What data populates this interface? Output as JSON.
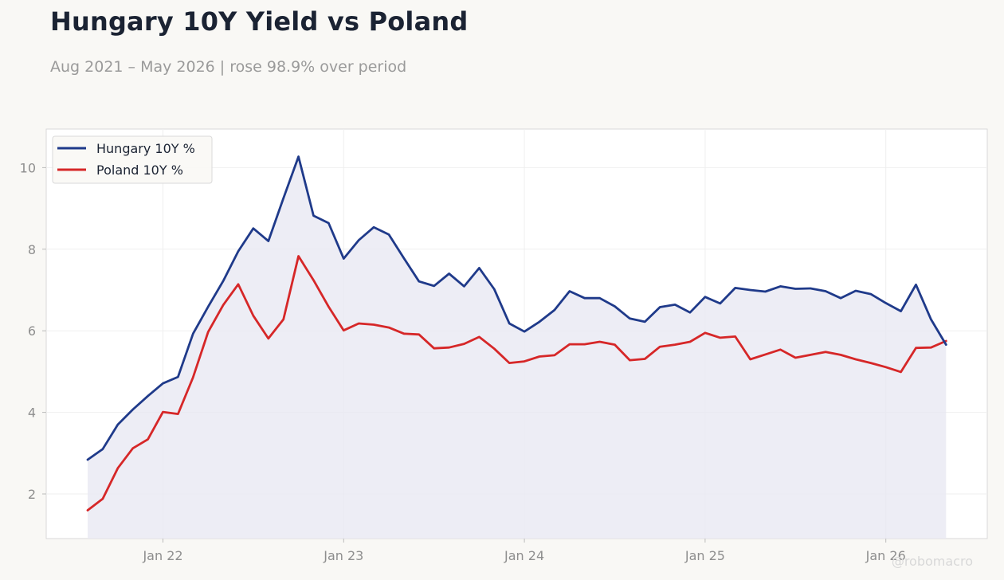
{
  "title": "Hungary 10Y Yield vs Poland",
  "subtitle": "Aug 2021 – May 2026 | rose 98.9% over period",
  "watermark": "@robomacro",
  "colors": {
    "hungary": "#1f3a8a",
    "poland": "#d62728",
    "fill": "#e9e9f2",
    "page_bg": "#f9f8f5",
    "plot_bg": "#ffffff"
  },
  "chart_data": {
    "type": "line",
    "x_start": "2021-08",
    "x_labels": [
      "Jan 22",
      "Jan 23",
      "Jan 24",
      "Jan 25",
      "Jan 26"
    ],
    "x_label_dates": [
      "2022-01",
      "2023-01",
      "2024-01",
      "2025-01",
      "2026-01"
    ],
    "ylim": [
      1.0,
      11.0
    ],
    "yticks": [
      2,
      4,
      6,
      8,
      10
    ],
    "ytick_labels": [
      "2",
      "4",
      "6",
      "8",
      "10"
    ],
    "grid": true,
    "legend": "top-left",
    "fill_under": "Hungary 10Y %",
    "series": [
      {
        "name": "Hungary 10Y %",
        "color": "#1f3a8a",
        "values": [
          2.84,
          3.1,
          3.7,
          4.07,
          4.4,
          4.71,
          4.87,
          5.93,
          6.59,
          7.22,
          7.95,
          8.51,
          8.2,
          9.25,
          10.27,
          8.82,
          8.64,
          7.77,
          8.22,
          8.54,
          8.36,
          7.78,
          7.21,
          7.1,
          7.4,
          7.09,
          7.54,
          7.02,
          6.18,
          5.98,
          6.22,
          6.51,
          6.97,
          6.8,
          6.8,
          6.6,
          6.3,
          6.22,
          6.58,
          6.64,
          6.45,
          6.83,
          6.67,
          7.05,
          7.0,
          6.96,
          7.09,
          7.03,
          7.04,
          6.97,
          6.8,
          6.98,
          6.9,
          6.68,
          6.48,
          7.13,
          6.28,
          5.66
        ]
      },
      {
        "name": "Poland 10Y %",
        "color": "#d62728",
        "values": [
          1.6,
          1.88,
          2.63,
          3.12,
          3.34,
          4.01,
          3.96,
          4.86,
          5.97,
          6.63,
          7.14,
          6.37,
          5.81,
          6.28,
          7.83,
          7.24,
          6.59,
          6.01,
          6.18,
          6.15,
          6.08,
          5.93,
          5.91,
          5.57,
          5.59,
          5.68,
          5.85,
          5.56,
          5.21,
          5.25,
          5.37,
          5.4,
          5.67,
          5.67,
          5.73,
          5.66,
          5.28,
          5.31,
          5.61,
          5.66,
          5.73,
          5.95,
          5.83,
          5.86,
          5.3,
          5.42,
          5.54,
          5.34,
          5.41,
          5.48,
          5.41,
          5.3,
          5.21,
          5.11,
          4.99,
          5.58,
          5.59,
          5.75
        ]
      }
    ]
  }
}
